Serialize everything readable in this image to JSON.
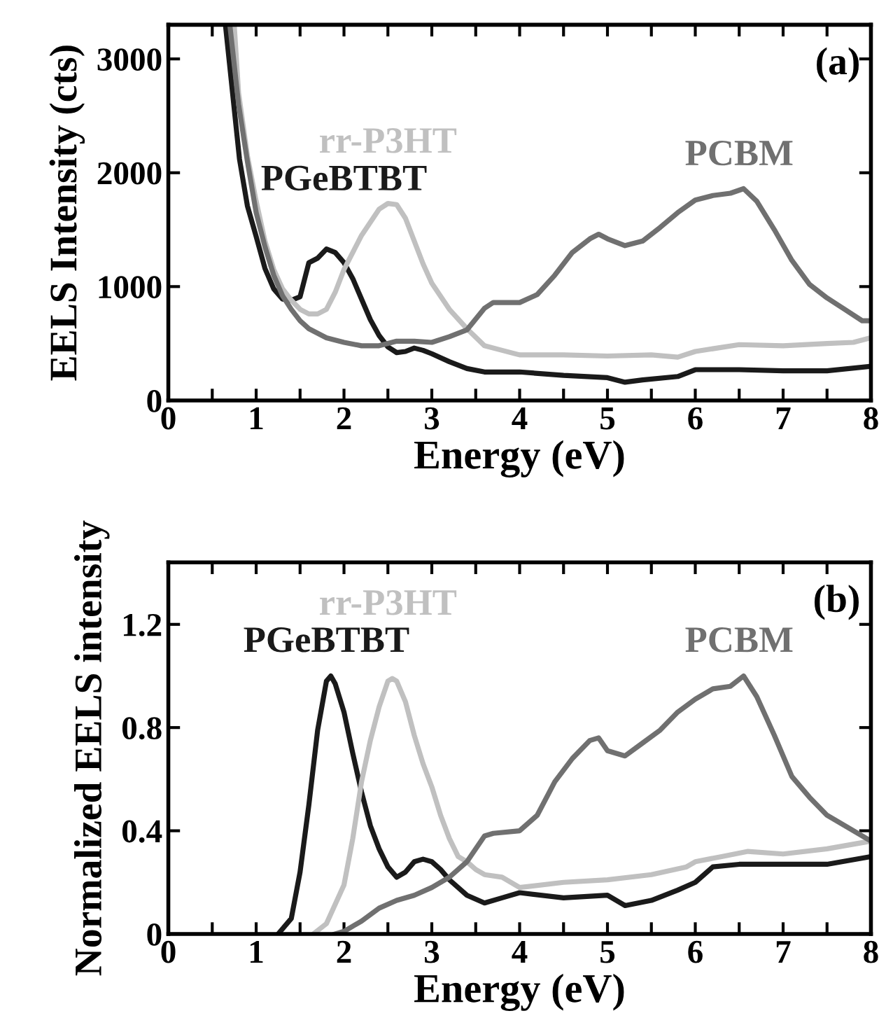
{
  "chart_data": [
    {
      "type": "line",
      "xlabel": "Energy (eV)",
      "ylabel": "EELS Intensity (cts)",
      "xlim": [
        0,
        8
      ],
      "ylim": [
        0,
        3300
      ],
      "xticks": [
        0,
        {
          "value": 0.5,
          "label": null
        },
        1,
        {
          "value": 1.5,
          "label": null
        },
        2,
        {
          "value": 2.5,
          "label": null
        },
        3,
        {
          "value": 3.5,
          "label": null
        },
        4,
        {
          "value": 4.5,
          "label": null
        },
        5,
        {
          "value": 5.5,
          "label": null
        },
        6,
        {
          "value": 6.5,
          "label": null
        },
        7,
        {
          "value": 7.5,
          "label": null
        },
        8
      ],
      "yticks": [
        0,
        1000,
        2000,
        3000
      ],
      "grid": false,
      "legend": false,
      "series": [
        {
          "name": "PGeBTBT",
          "color": "#1a1a1a",
          "x": [
            0.65,
            0.81,
            0.9,
            1.0,
            1.1,
            1.2,
            1.3,
            1.4,
            1.5,
            1.6,
            1.7,
            1.8,
            1.9,
            2.0,
            2.1,
            2.2,
            2.3,
            2.4,
            2.5,
            2.6,
            2.7,
            2.8,
            2.9,
            3.0,
            3.2,
            3.4,
            3.6,
            3.8,
            4.0,
            4.5,
            5.0,
            5.2,
            5.4,
            5.8,
            6.0,
            6.5,
            7.0,
            7.5,
            8.0
          ],
          "values": [
            3300,
            2120,
            1710,
            1440,
            1160,
            980,
            890,
            880,
            910,
            1210,
            1250,
            1330,
            1300,
            1210,
            1070,
            890,
            710,
            570,
            470,
            420,
            430,
            460,
            440,
            410,
            340,
            280,
            250,
            250,
            250,
            220,
            200,
            160,
            180,
            210,
            270,
            270,
            260,
            260,
            300
          ]
        },
        {
          "name": "rr-P3HT",
          "color": "#c0c0c0",
          "x": [
            0.75,
            0.8,
            0.9,
            1.0,
            1.1,
            1.2,
            1.3,
            1.4,
            1.5,
            1.6,
            1.7,
            1.8,
            1.9,
            2.0,
            2.2,
            2.4,
            2.5,
            2.6,
            2.7,
            2.8,
            2.9,
            3.0,
            3.2,
            3.4,
            3.6,
            3.8,
            4.0,
            4.5,
            5.0,
            5.5,
            5.8,
            6.0,
            6.5,
            7.0,
            7.5,
            7.8,
            8.0
          ],
          "values": [
            3300,
            2700,
            2150,
            1750,
            1400,
            1150,
            980,
            880,
            800,
            760,
            760,
            800,
            950,
            1150,
            1450,
            1680,
            1730,
            1720,
            1600,
            1400,
            1200,
            1030,
            800,
            630,
            480,
            440,
            400,
            400,
            390,
            400,
            380,
            430,
            490,
            480,
            500,
            510,
            550
          ]
        },
        {
          "name": "PCBM",
          "color": "#707070",
          "x": [
            0.7,
            0.8,
            0.9,
            1.0,
            1.1,
            1.2,
            1.3,
            1.4,
            1.5,
            1.6,
            1.8,
            2.0,
            2.2,
            2.4,
            2.6,
            2.8,
            3.0,
            3.2,
            3.4,
            3.6,
            3.7,
            3.8,
            4.0,
            4.2,
            4.4,
            4.6,
            4.8,
            4.9,
            5.0,
            5.2,
            5.4,
            5.6,
            5.8,
            6.0,
            6.2,
            6.4,
            6.55,
            6.7,
            6.9,
            7.1,
            7.3,
            7.5,
            7.7,
            7.9,
            8.0
          ],
          "values": [
            3300,
            2600,
            2100,
            1650,
            1350,
            1100,
            920,
            800,
            700,
            630,
            550,
            510,
            480,
            480,
            520,
            520,
            510,
            560,
            620,
            810,
            860,
            860,
            860,
            930,
            1100,
            1300,
            1420,
            1460,
            1420,
            1360,
            1400,
            1520,
            1650,
            1760,
            1800,
            1820,
            1860,
            1750,
            1500,
            1230,
            1020,
            900,
            800,
            700,
            700
          ]
        }
      ],
      "annotations": [
        "(a)"
      ]
    },
    {
      "type": "line",
      "xlabel": "Energy (eV)",
      "ylabel": "Normalized EELS intensity",
      "xlim": [
        0,
        8
      ],
      "ylim": [
        0,
        1.44
      ],
      "xticks": [
        0,
        {
          "value": 0.5,
          "label": null
        },
        1,
        {
          "value": 1.5,
          "label": null
        },
        2,
        {
          "value": 2.5,
          "label": null
        },
        3,
        {
          "value": 3.5,
          "label": null
        },
        4,
        {
          "value": 4.5,
          "label": null
        },
        5,
        {
          "value": 5.5,
          "label": null
        },
        6,
        {
          "value": 6.5,
          "label": null
        },
        7,
        {
          "value": 7.5,
          "label": null
        },
        8
      ],
      "yticks": [
        0,
        0.4,
        0.8,
        1.2
      ],
      "grid": false,
      "legend": false,
      "series": [
        {
          "name": "PGeBTBT",
          "color": "#1a1a1a",
          "x": [
            1.25,
            1.4,
            1.5,
            1.6,
            1.7,
            1.8,
            1.85,
            1.9,
            2.0,
            2.1,
            2.2,
            2.3,
            2.4,
            2.5,
            2.6,
            2.7,
            2.8,
            2.9,
            3.0,
            3.1,
            3.2,
            3.4,
            3.6,
            3.8,
            4.0,
            4.5,
            5.0,
            5.2,
            5.5,
            5.8,
            6.0,
            6.2,
            6.5,
            7.0,
            7.5,
            8.0
          ],
          "values": [
            0,
            0.06,
            0.24,
            0.5,
            0.79,
            0.98,
            1.0,
            0.97,
            0.86,
            0.7,
            0.55,
            0.42,
            0.33,
            0.26,
            0.22,
            0.24,
            0.28,
            0.29,
            0.28,
            0.25,
            0.21,
            0.15,
            0.12,
            0.14,
            0.16,
            0.14,
            0.15,
            0.11,
            0.13,
            0.17,
            0.2,
            0.26,
            0.27,
            0.27,
            0.27,
            0.3
          ]
        },
        {
          "name": "rr-P3HT",
          "color": "#c0c0c0",
          "x": [
            1.65,
            1.8,
            2.0,
            2.1,
            2.2,
            2.3,
            2.4,
            2.5,
            2.55,
            2.6,
            2.7,
            2.8,
            2.9,
            3.0,
            3.1,
            3.2,
            3.3,
            3.4,
            3.5,
            3.6,
            3.8,
            4.0,
            4.5,
            5.0,
            5.5,
            5.9,
            6.0,
            6.3,
            6.6,
            7.0,
            7.5,
            8.0
          ],
          "values": [
            0,
            0.04,
            0.19,
            0.37,
            0.59,
            0.75,
            0.88,
            0.98,
            0.99,
            0.98,
            0.9,
            0.77,
            0.66,
            0.57,
            0.46,
            0.37,
            0.3,
            0.28,
            0.25,
            0.23,
            0.22,
            0.18,
            0.2,
            0.21,
            0.23,
            0.26,
            0.28,
            0.3,
            0.32,
            0.31,
            0.33,
            0.36
          ]
        },
        {
          "name": "PCBM",
          "color": "#707070",
          "x": [
            1.9,
            2.0,
            2.2,
            2.4,
            2.6,
            2.8,
            3.0,
            3.2,
            3.4,
            3.6,
            3.7,
            4.0,
            4.2,
            4.4,
            4.6,
            4.8,
            4.9,
            5.0,
            5.2,
            5.4,
            5.6,
            5.8,
            6.0,
            6.2,
            6.4,
            6.55,
            6.7,
            6.9,
            7.1,
            7.3,
            7.5,
            7.7,
            7.9,
            8.0
          ],
          "values": [
            0,
            0.01,
            0.05,
            0.1,
            0.13,
            0.15,
            0.18,
            0.22,
            0.28,
            0.38,
            0.39,
            0.4,
            0.46,
            0.59,
            0.68,
            0.75,
            0.76,
            0.71,
            0.69,
            0.74,
            0.79,
            0.86,
            0.91,
            0.95,
            0.96,
            1.0,
            0.92,
            0.77,
            0.61,
            0.53,
            0.46,
            0.42,
            0.38,
            0.36
          ]
        }
      ],
      "annotations": [
        "(b)"
      ]
    }
  ]
}
